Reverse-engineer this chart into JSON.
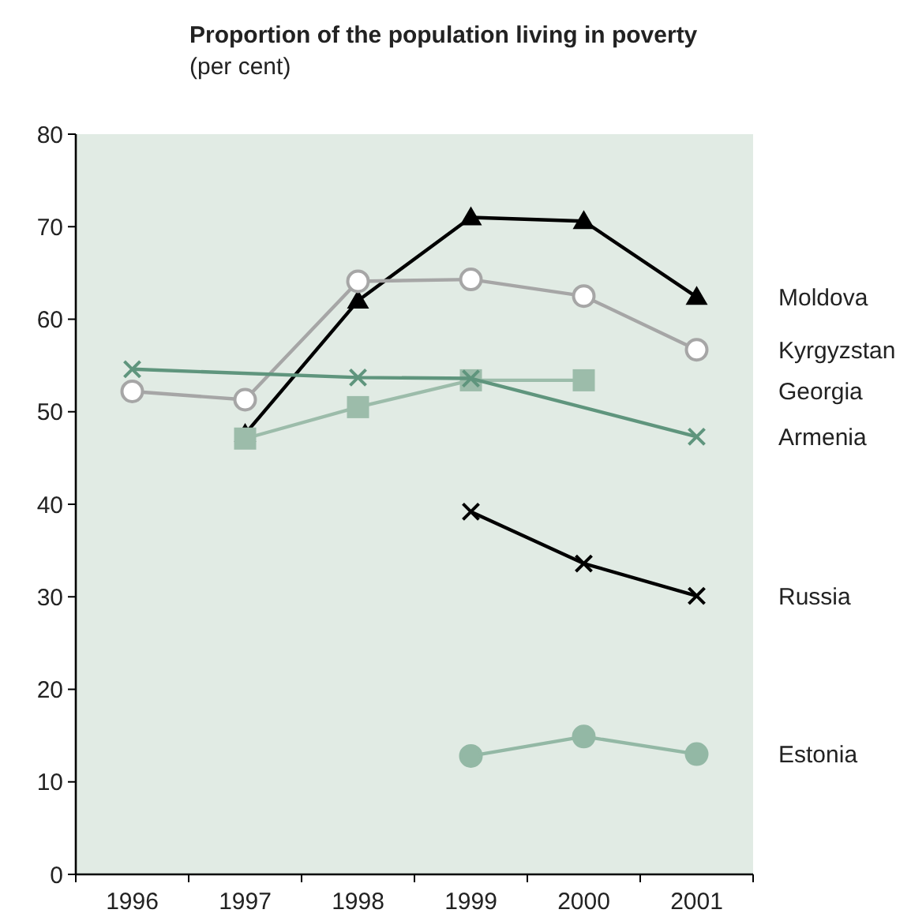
{
  "chart_data": {
    "type": "line",
    "title": "Proportion of the population living in poverty",
    "subtitle": "(per cent)",
    "categories": [
      "1996",
      "1997",
      "1998",
      "1999",
      "2000",
      "2001"
    ],
    "ylim": [
      0,
      80
    ],
    "yticks": [
      0,
      10,
      20,
      30,
      40,
      50,
      60,
      70,
      80
    ],
    "grid": false,
    "legend": false,
    "series": [
      {
        "name": "Moldova",
        "color": "#000000",
        "marker": "triangle",
        "values": [
          null,
          47.6,
          62,
          71,
          70.6,
          62.4
        ]
      },
      {
        "name": "Kyrgyzstan",
        "color": "#a6a6a6",
        "marker": "circle",
        "values": [
          52.2,
          51.3,
          64.1,
          64.3,
          62.5,
          56.7
        ]
      },
      {
        "name": "Georgia",
        "color": "#9cbcaa",
        "marker": "square",
        "values": [
          null,
          47.1,
          50.5,
          53.4,
          53.4,
          null
        ]
      },
      {
        "name": "Armenia",
        "color": "#5f957d",
        "marker": "cross",
        "values": [
          54.6,
          null,
          53.7,
          53.6,
          null,
          47.3
        ]
      },
      {
        "name": "Russia",
        "color": "#000000",
        "marker": "cross",
        "values": [
          null,
          null,
          null,
          39.2,
          33.6,
          30.1
        ]
      },
      {
        "name": "Estonia",
        "color": "#93b8a5",
        "marker": "circle",
        "values": [
          null,
          null,
          null,
          12.8,
          14.9,
          13.0
        ]
      }
    ]
  }
}
